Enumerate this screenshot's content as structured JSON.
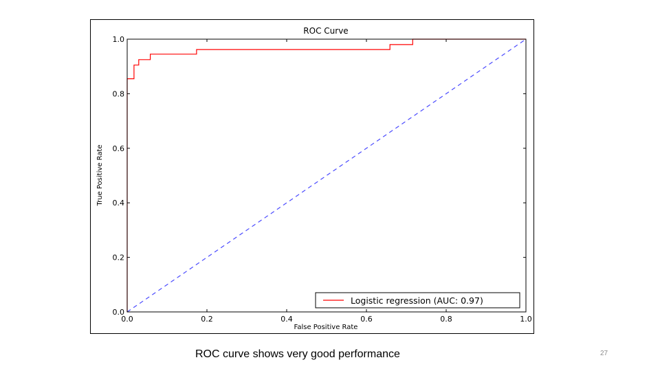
{
  "slide": {
    "caption": "ROC curve shows very good performance",
    "page_number": "27"
  },
  "chart_data": {
    "type": "line",
    "title": "ROC Curve",
    "xlabel": "False Positive Rate",
    "ylabel": "True Positive Rate",
    "xlim": [
      0.0,
      1.0
    ],
    "ylim": [
      0.0,
      1.0
    ],
    "xticks": [
      "0.0",
      "0.2",
      "0.4",
      "0.6",
      "0.8",
      "1.0"
    ],
    "yticks": [
      "0.0",
      "0.2",
      "0.4",
      "0.6",
      "0.8",
      "1.0"
    ],
    "grid": false,
    "legend_position": "bottom-right",
    "series": [
      {
        "name": "Logistic regression (AUC: 0.97)",
        "color": "#ff0000",
        "style": "solid",
        "x": [
          0.0,
          0.0,
          0.017,
          0.017,
          0.029,
          0.029,
          0.058,
          0.058,
          0.174,
          0.174,
          0.659,
          0.659,
          0.716,
          0.716,
          1.0
        ],
        "y": [
          0.0,
          0.855,
          0.855,
          0.905,
          0.905,
          0.925,
          0.925,
          0.945,
          0.945,
          0.962,
          0.962,
          0.98,
          0.98,
          1.0,
          1.0
        ]
      },
      {
        "name": "",
        "color": "#4a4aff",
        "style": "dashed",
        "x": [
          0.0,
          1.0
        ],
        "y": [
          0.0,
          1.0
        ]
      }
    ]
  }
}
